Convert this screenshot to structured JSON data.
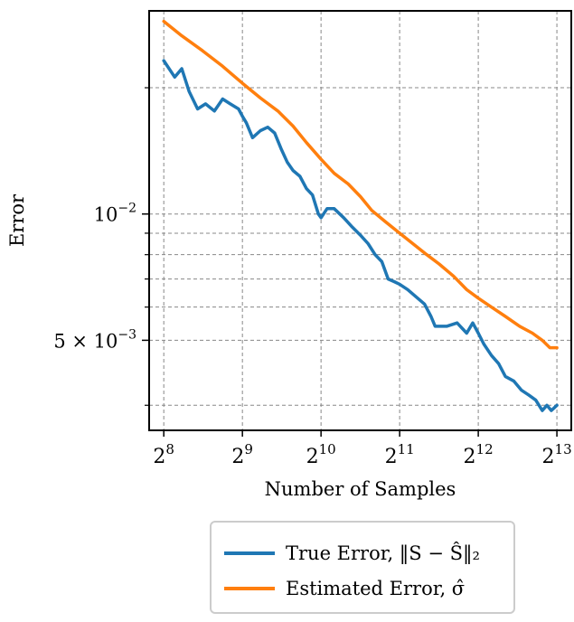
{
  "chart_data": {
    "type": "line",
    "xlabel": "Number of Samples",
    "ylabel": "Error",
    "x_scale": "log2",
    "y_scale": "log",
    "xlim": [
      225,
      9300
    ],
    "ylim": [
      0.00305,
      0.0305
    ],
    "x_ticks": [
      {
        "value": 256,
        "base": "2",
        "exp": "8"
      },
      {
        "value": 512,
        "base": "2",
        "exp": "9"
      },
      {
        "value": 1024,
        "base": "2",
        "exp": "10"
      },
      {
        "value": 2048,
        "base": "2",
        "exp": "11"
      },
      {
        "value": 4096,
        "base": "2",
        "exp": "12"
      },
      {
        "value": 8192,
        "base": "2",
        "exp": "13"
      }
    ],
    "y_major_ticks": [
      {
        "value": 0.01,
        "prefix": "",
        "base": "10",
        "exp": "−2"
      },
      {
        "value": 0.005,
        "prefix": "5 × ",
        "base": "10",
        "exp": "−3"
      }
    ],
    "y_minor_ticks": [
      0.0035,
      0.006,
      0.007,
      0.008,
      0.009,
      0.02
    ],
    "grid": true,
    "legend_position": "bottom-below-plot",
    "series": [
      {
        "name": "True Error, ‖S − Ŝ‖₂",
        "color": "#1f77b4",
        "x": [
          256,
          282,
          300,
          320,
          345,
          370,
          400,
          430,
          460,
          495,
          512,
          530,
          560,
          600,
          640,
          680,
          720,
          760,
          800,
          850,
          900,
          950,
          1000,
          1024,
          1080,
          1150,
          1250,
          1350,
          1450,
          1550,
          1650,
          1750,
          1850,
          1950,
          2048,
          2200,
          2400,
          2550,
          2700,
          2800,
          2900,
          3100,
          3400,
          3700,
          3900,
          4096,
          4300,
          4600,
          4900,
          5200,
          5600,
          6000,
          6400,
          6800,
          7200,
          7500,
          7800,
          8192
        ],
        "y": [
          0.0232,
          0.0212,
          0.0222,
          0.0196,
          0.0178,
          0.0183,
          0.0176,
          0.0188,
          0.0183,
          0.0178,
          0.0171,
          0.0165,
          0.0152,
          0.0158,
          0.0161,
          0.0156,
          0.0143,
          0.0133,
          0.0127,
          0.0123,
          0.0115,
          0.0111,
          0.01,
          0.0098,
          0.0103,
          0.0103,
          0.0098,
          0.0093,
          0.0089,
          0.0085,
          0.008,
          0.0077,
          0.007,
          0.0069,
          0.0068,
          0.0066,
          0.0063,
          0.0061,
          0.0057,
          0.0054,
          0.0054,
          0.0054,
          0.0055,
          0.0052,
          0.0055,
          0.0052,
          0.0049,
          0.0046,
          0.0044,
          0.0041,
          0.004,
          0.0038,
          0.0037,
          0.0036,
          0.0034,
          0.0035,
          0.0034,
          0.0035
        ]
      },
      {
        "name": "Estimated Error, σ̂",
        "color": "#ff7f0e",
        "x": [
          256,
          300,
          360,
          430,
          512,
          600,
          700,
          800,
          900,
          1024,
          1150,
          1300,
          1450,
          1600,
          1800,
          2048,
          2300,
          2600,
          2900,
          3300,
          3700,
          4096,
          4600,
          5200,
          5900,
          6600,
          7200,
          7700,
          8192
        ],
        "y": [
          0.0288,
          0.0266,
          0.0245,
          0.0225,
          0.0205,
          0.0189,
          0.0176,
          0.0162,
          0.0148,
          0.0135,
          0.0125,
          0.0118,
          0.011,
          0.0102,
          0.0096,
          0.009,
          0.0085,
          0.008,
          0.0076,
          0.0071,
          0.0066,
          0.0063,
          0.006,
          0.0057,
          0.0054,
          0.0052,
          0.005,
          0.0048,
          0.0048
        ]
      }
    ]
  }
}
